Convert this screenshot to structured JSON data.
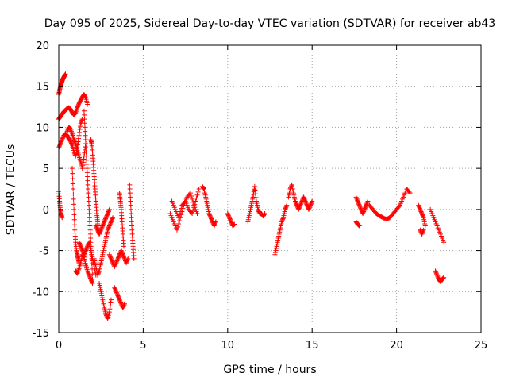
{
  "chart_data": {
    "type": "scatter",
    "title": "Day 095 of 2025, Sidereal Day-to-day VTEC variation (SDTVAR) for receiver ab43",
    "xlabel": "GPS time / hours",
    "ylabel": "SDTVAR / TECUs",
    "xlim": [
      0,
      25
    ],
    "ylim": [
      -15,
      20
    ],
    "xticks": [
      0,
      5,
      10,
      15,
      20,
      25
    ],
    "yticks": [
      -15,
      -10,
      -5,
      0,
      5,
      10,
      15,
      20
    ],
    "grid": true,
    "marker": "+",
    "color": "#ff0000",
    "series": [
      {
        "name": "SDTVAR",
        "segments": [
          {
            "x": [
              0.0,
              0.05,
              0.1,
              0.15,
              0.2,
              0.25,
              0.3,
              0.35,
              0.4
            ],
            "y": [
              14.0,
              14.5,
              15.0,
              15.3,
              15.6,
              15.9,
              16.1,
              16.3,
              16.5
            ]
          },
          {
            "x": [
              0.0,
              0.05,
              0.1,
              0.15,
              0.2
            ],
            "y": [
              2.2,
              1.0,
              0.0,
              -0.6,
              -1.0
            ]
          },
          {
            "x": [
              0.0,
              0.1,
              0.2,
              0.3,
              0.4,
              0.5,
              0.6,
              0.7,
              0.8,
              0.9,
              1.0,
              1.1,
              1.2,
              1.3,
              1.4,
              1.5,
              1.6,
              1.7
            ],
            "y": [
              11.0,
              11.3,
              11.6,
              11.9,
              12.1,
              12.3,
              12.4,
              12.2,
              11.8,
              11.5,
              11.8,
              12.4,
              12.9,
              13.3,
              13.7,
              14.0,
              13.6,
              12.8
            ]
          },
          {
            "x": [
              0.0,
              0.1,
              0.2,
              0.3,
              0.4,
              0.5,
              0.6,
              0.7,
              0.8,
              0.9,
              1.0,
              1.1,
              1.2,
              1.3,
              1.4
            ],
            "y": [
              7.5,
              8.0,
              8.5,
              9.0,
              9.2,
              9.0,
              8.6,
              8.3,
              7.8,
              7.0,
              6.5,
              7.5,
              9.0,
              10.5,
              11.0
            ]
          },
          {
            "x": [
              0.5,
              0.6,
              0.7,
              0.8,
              0.9,
              1.0,
              1.1,
              1.2,
              1.3,
              1.4,
              1.5,
              1.6
            ],
            "y": [
              9.5,
              10.0,
              9.8,
              9.2,
              8.5,
              8.0,
              7.2,
              6.5,
              5.8,
              5.0,
              6.5,
              8.0
            ]
          },
          {
            "x": [
              0.8,
              0.85,
              0.9,
              0.95,
              1.0,
              1.05,
              1.1,
              1.15,
              1.2
            ],
            "y": [
              5.0,
              2.5,
              0.0,
              -2.5,
              -4.0,
              -5.0,
              -5.5,
              -6.0,
              -6.5
            ]
          },
          {
            "x": [
              1.0,
              1.1,
              1.2,
              1.3,
              1.4,
              1.5,
              1.6,
              1.7,
              1.8,
              1.9,
              2.0
            ],
            "y": [
              -7.5,
              -7.8,
              -7.2,
              -6.5,
              -5.5,
              -5.8,
              -6.8,
              -7.5,
              -8.0,
              -8.5,
              -9.0
            ]
          },
          {
            "x": [
              1.2,
              1.3,
              1.4,
              1.5,
              1.6,
              1.7,
              1.8,
              1.9,
              2.0,
              2.1,
              2.2
            ],
            "y": [
              -4.0,
              -4.5,
              -5.0,
              -5.5,
              -5.0,
              -4.5,
              -4.0,
              -5.0,
              -6.0,
              -7.0,
              -8.0
            ]
          },
          {
            "x": [
              1.5,
              1.55,
              1.6,
              1.65,
              1.7,
              1.75,
              1.8,
              1.85,
              1.9,
              1.95,
              2.0
            ],
            "y": [
              12.0,
              10.0,
              8.0,
              6.0,
              4.0,
              2.0,
              0.0,
              -2.0,
              -4.0,
              -6.0,
              -8.5
            ]
          },
          {
            "x": [
              1.9,
              1.95,
              2.0,
              2.05,
              2.1,
              2.15,
              2.2,
              2.25,
              2.3,
              2.35,
              2.4
            ],
            "y": [
              8.5,
              8.0,
              7.0,
              5.5,
              4.0,
              2.5,
              1.0,
              -0.5,
              -1.5,
              -2.5,
              -3.0
            ]
          },
          {
            "x": [
              2.2,
              2.3,
              2.4,
              2.5,
              2.6,
              2.7,
              2.8,
              2.9,
              3.0
            ],
            "y": [
              -2.0,
              -2.5,
              -3.0,
              -2.5,
              -2.0,
              -1.5,
              -1.0,
              -0.5,
              0.0
            ]
          },
          {
            "x": [
              2.1,
              2.2,
              2.3,
              2.4,
              2.5,
              2.6,
              2.7,
              2.8,
              2.9,
              3.0,
              3.1,
              3.2
            ],
            "y": [
              -6.0,
              -7.0,
              -8.0,
              -7.5,
              -6.5,
              -5.5,
              -4.5,
              -3.5,
              -2.5,
              -2.0,
              -1.5,
              -1.0
            ]
          },
          {
            "x": [
              2.4,
              2.5,
              2.6,
              2.7,
              2.8,
              2.9,
              3.0,
              3.1
            ],
            "y": [
              -9.0,
              -10.0,
              -11.0,
              -12.0,
              -12.8,
              -13.3,
              -12.5,
              -11.0
            ]
          },
          {
            "x": [
              3.0,
              3.1,
              3.2,
              3.3,
              3.4,
              3.5,
              3.6,
              3.7,
              3.8,
              3.9,
              4.0,
              4.1
            ],
            "y": [
              -5.5,
              -6.0,
              -6.5,
              -7.0,
              -6.5,
              -6.0,
              -5.5,
              -5.0,
              -5.5,
              -6.0,
              -6.5,
              -6.0
            ]
          },
          {
            "x": [
              3.3,
              3.4,
              3.5,
              3.6,
              3.7,
              3.8,
              3.9
            ],
            "y": [
              -9.5,
              -10.0,
              -10.5,
              -11.0,
              -11.5,
              -12.0,
              -11.5
            ]
          },
          {
            "x": [
              3.6,
              3.65,
              3.7,
              3.75,
              3.8,
              3.85
            ],
            "y": [
              2.0,
              1.0,
              0.0,
              -1.5,
              -3.0,
              -4.5
            ]
          },
          {
            "x": [
              4.2,
              4.25,
              4.3,
              4.35,
              4.4,
              4.45
            ],
            "y": [
              3.0,
              1.0,
              -1.0,
              -3.0,
              -4.5,
              -6.0
            ]
          },
          {
            "x": [
              6.6,
              6.8,
              7.0,
              7.2,
              7.4,
              7.6,
              7.8,
              8.0,
              8.2
            ],
            "y": [
              -0.5,
              -1.5,
              -2.5,
              -1.0,
              0.5,
              1.5,
              2.0,
              0.5,
              -0.5
            ]
          },
          {
            "x": [
              6.7,
              6.9,
              7.1,
              7.3,
              7.5,
              7.7,
              7.9,
              8.1,
              8.3
            ],
            "y": [
              1.0,
              0.0,
              -1.0,
              0.5,
              1.0,
              0.0,
              -0.5,
              1.0,
              2.5
            ]
          },
          {
            "x": [
              8.5,
              8.6,
              8.7,
              8.8,
              8.9,
              9.0,
              9.1,
              9.2,
              9.3
            ],
            "y": [
              2.8,
              2.5,
              1.5,
              0.5,
              -0.5,
              -1.0,
              -1.5,
              -2.0,
              -1.5
            ]
          },
          {
            "x": [
              10.0,
              10.1,
              10.2,
              10.3,
              10.4
            ],
            "y": [
              -0.5,
              -1.0,
              -1.5,
              -2.0,
              -1.8
            ]
          },
          {
            "x": [
              11.2,
              11.3,
              11.4,
              11.5,
              11.6,
              11.7,
              11.8,
              11.9,
              12.0,
              12.1,
              12.2
            ],
            "y": [
              -1.5,
              -0.5,
              0.5,
              1.5,
              2.8,
              1.0,
              0.0,
              -0.5,
              -0.5,
              -0.8,
              -0.5
            ]
          },
          {
            "x": [
              12.8,
              12.9,
              13.0,
              13.1,
              13.2,
              13.3,
              13.4,
              13.5
            ],
            "y": [
              -5.5,
              -4.5,
              -3.5,
              -2.5,
              -1.5,
              -1.0,
              0.0,
              0.5
            ]
          },
          {
            "x": [
              13.6,
              13.7,
              13.8,
              13.9,
              14.0,
              14.1,
              14.2,
              14.3,
              14.4,
              14.5,
              14.6,
              14.7,
              14.8,
              14.9,
              15.0
            ],
            "y": [
              1.5,
              2.5,
              3.0,
              2.0,
              1.0,
              0.5,
              0.0,
              0.5,
              1.0,
              1.5,
              1.0,
              0.5,
              0.0,
              0.5,
              1.0
            ]
          },
          {
            "x": [
              17.6,
              17.7,
              17.8,
              17.9,
              18.0,
              18.1,
              18.2,
              18.3
            ],
            "y": [
              1.5,
              1.0,
              0.5,
              0.0,
              -0.5,
              0.0,
              0.5,
              1.0
            ]
          },
          {
            "x": [
              17.6,
              17.7,
              17.8
            ],
            "y": [
              -1.5,
              -1.8,
              -2.0
            ]
          },
          {
            "x": [
              18.4,
              18.6,
              18.8,
              19.0,
              19.2,
              19.4,
              19.6,
              19.8,
              20.0,
              20.2,
              20.4,
              20.6,
              20.8
            ],
            "y": [
              0.5,
              0.0,
              -0.5,
              -0.8,
              -1.0,
              -1.2,
              -1.0,
              -0.5,
              0.0,
              0.5,
              1.5,
              2.5,
              2.0
            ]
          },
          {
            "x": [
              21.3,
              21.4,
              21.5,
              21.6,
              21.7
            ],
            "y": [
              0.5,
              0.0,
              -0.5,
              -1.0,
              -2.0
            ]
          },
          {
            "x": [
              21.4,
              21.5,
              21.6
            ],
            "y": [
              -2.5,
              -3.0,
              -2.5
            ]
          },
          {
            "x": [
              22.0,
              22.2,
              22.4,
              22.6,
              22.8
            ],
            "y": [
              0.0,
              -1.0,
              -2.0,
              -3.0,
              -4.0
            ]
          },
          {
            "x": [
              22.3,
              22.4,
              22.5,
              22.6,
              22.7,
              22.8
            ],
            "y": [
              -7.5,
              -8.0,
              -8.5,
              -8.8,
              -8.5,
              -8.3
            ]
          }
        ]
      }
    ]
  }
}
